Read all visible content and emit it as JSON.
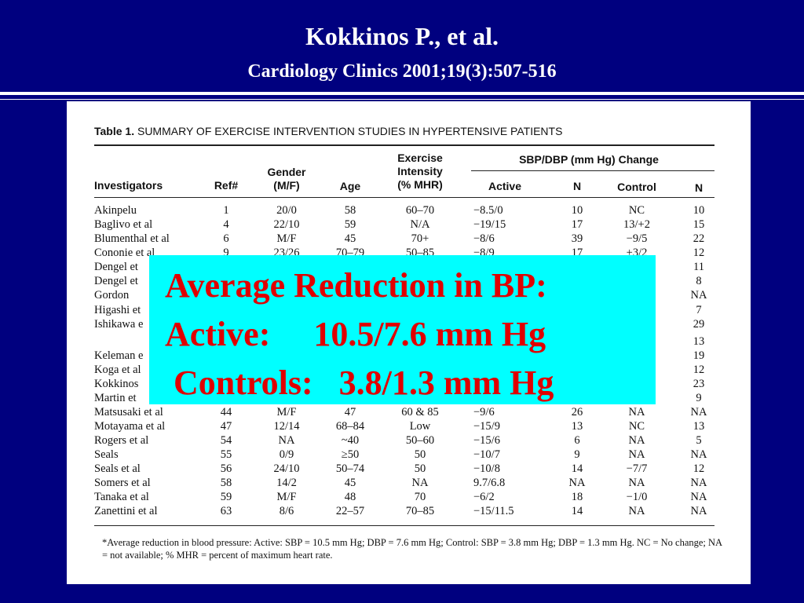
{
  "slide": {
    "title": "Kokkinos P., et al.",
    "subtitle": "Cardiology Clinics  2001;19(3):507-516"
  },
  "table": {
    "label": "Table 1.",
    "caption": "SUMMARY OF EXERCISE INTERVENTION STUDIES IN HYPERTENSIVE PATIENTS",
    "headers": {
      "investigators": "Investigators",
      "ref": "Ref#",
      "gender": "Gender\n(M/F)",
      "age": "Age",
      "exercise": "Exercise\nIntensity\n(% MHR)",
      "change_group": "SBP/DBP (mm Hg) Change",
      "active": "Active",
      "n_active": "N",
      "control": "Control",
      "n_control": "N"
    },
    "rows": [
      {
        "inv": "Akinpelu",
        "ref": "1",
        "gender": "20/0",
        "age": "58",
        "ex": "60–70",
        "active": "−8.5/0",
        "n1": "10",
        "control": "NC",
        "n2": "10"
      },
      {
        "inv": "Baglivo et al",
        "ref": "4",
        "gender": "22/10",
        "age": "59",
        "ex": "N/A",
        "active": "−19/15",
        "n1": "17",
        "control": "13/+2",
        "n2": "15"
      },
      {
        "inv": "Blumenthal et al",
        "ref": "6",
        "gender": "M/F",
        "age": "45",
        "ex": "70+",
        "active": "−8/6",
        "n1": "39",
        "control": "−9/5",
        "n2": "22"
      },
      {
        "inv": "Cononie et al",
        "ref": "9",
        "gender": "23/26",
        "age": "70–79",
        "ex": "50–85",
        "active": "−8/9",
        "n1": "17",
        "control": "+3/2",
        "n2": "12"
      },
      {
        "inv": "Dengel et",
        "ref": "",
        "gender": "",
        "age": "",
        "ex": "",
        "active": "",
        "n1": "",
        "control": "",
        "n2": "11"
      },
      {
        "inv": "Dengel et",
        "ref": "",
        "gender": "",
        "age": "",
        "ex": "",
        "active": "",
        "n1": "",
        "control": "",
        "n2": "8"
      },
      {
        "inv": "Gordon",
        "ref": "",
        "gender": "",
        "age": "",
        "ex": "",
        "active": "",
        "n1": "",
        "control": "",
        "n2": "NA"
      },
      {
        "inv": "Higashi et",
        "ref": "",
        "gender": "",
        "age": "",
        "ex": "",
        "active": "",
        "n1": "",
        "control": "",
        "n2": "7"
      },
      {
        "inv": "Ishikawa e",
        "ref": "",
        "gender": "",
        "age": "",
        "ex": "",
        "active": "",
        "n1": "",
        "control": "",
        "n2": "29"
      },
      {
        "inv": "",
        "ref": "",
        "gender": "",
        "age": "",
        "ex": "",
        "active": "",
        "n1": "",
        "control": "",
        "n2": "13"
      },
      {
        "inv": "Keleman e",
        "ref": "",
        "gender": "",
        "age": "",
        "ex": "",
        "active": "",
        "n1": "",
        "control": "",
        "n2": "19"
      },
      {
        "inv": "Koga et al",
        "ref": "",
        "gender": "",
        "age": "",
        "ex": "",
        "active": "",
        "n1": "",
        "control": "",
        "n2": "12"
      },
      {
        "inv": "Kokkinos",
        "ref": "",
        "gender": "",
        "age": "",
        "ex": "",
        "active": "",
        "n1": "",
        "control": "",
        "n2": "23"
      },
      {
        "inv": "Martin et",
        "ref": "",
        "gender": "",
        "age": "",
        "ex": "",
        "active": "",
        "n1": "",
        "control": "",
        "n2": "9"
      },
      {
        "inv": "Matsusaki et al",
        "ref": "44",
        "gender": "M/F",
        "age": "47",
        "ex": "60 & 85",
        "active": "−9/6",
        "n1": "26",
        "control": "NA",
        "n2": "NA"
      },
      {
        "inv": "Motayama et al",
        "ref": "47",
        "gender": "12/14",
        "age": "68–84",
        "ex": "Low",
        "active": "−15/9",
        "n1": "13",
        "control": "NC",
        "n2": "13"
      },
      {
        "inv": "Rogers et al",
        "ref": "54",
        "gender": "NA",
        "age": "~40",
        "ex": "50–60",
        "active": "−15/6",
        "n1": "6",
        "control": "NA",
        "n2": "5"
      },
      {
        "inv": "Seals",
        "ref": "55",
        "gender": "0/9",
        "age": "≥50",
        "ex": "50",
        "active": "−10/7",
        "n1": "9",
        "control": "NA",
        "n2": "NA"
      },
      {
        "inv": "Seals et al",
        "ref": "56",
        "gender": "24/10",
        "age": "50–74",
        "ex": "50",
        "active": "−10/8",
        "n1": "14",
        "control": "−7/7",
        "n2": "12"
      },
      {
        "inv": "Somers et al",
        "ref": "58",
        "gender": "14/2",
        "age": "45",
        "ex": "NA",
        "active": "9.7/6.8",
        "n1": "NA",
        "control": "NA",
        "n2": "NA"
      },
      {
        "inv": "Tanaka et al",
        "ref": "59",
        "gender": "M/F",
        "age": "48",
        "ex": "70",
        "active": "−6/2",
        "n1": "18",
        "control": "−1/0",
        "n2": "NA"
      },
      {
        "inv": "Zanettini et al",
        "ref": "63",
        "gender": "8/6",
        "age": "22–57",
        "ex": "70–85",
        "active": "−15/11.5",
        "n1": "14",
        "control": "NA",
        "n2": "NA"
      }
    ],
    "footnote": "*Average reduction in blood pressure: Active: SBP = 10.5 mm Hg; DBP = 7.6 mm Hg; Control: SBP = 3.8 mm Hg; DBP = 1.3 mm Hg. NC = No change; NA = not available; % MHR = percent of maximum heart rate."
  },
  "overlay": {
    "line1": "Average Reduction in BP:",
    "line2": "Active:     10.5/7.6 mm Hg",
    "line3": " Controls:   3.8/1.3 mm Hg"
  }
}
